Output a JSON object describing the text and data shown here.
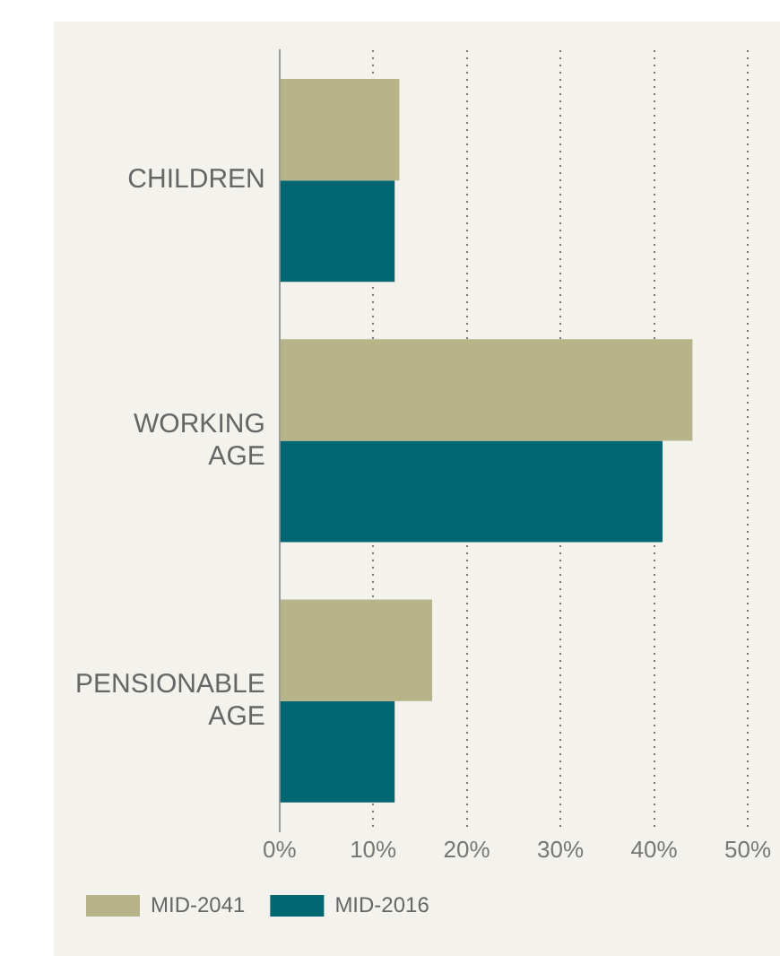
{
  "chart_data": {
    "type": "bar",
    "orientation": "horizontal",
    "categories": [
      "CHILDREN",
      "WORKING AGE",
      "PENSIONABLE AGE"
    ],
    "series": [
      {
        "name": "MID-2041",
        "color": "#b8b48a",
        "values": [
          12.8,
          44.1,
          16.3
        ]
      },
      {
        "name": "MID-2016",
        "color": "#006672",
        "values": [
          12.3,
          40.9,
          12.3
        ]
      }
    ],
    "xlim": [
      0,
      50
    ],
    "xticks": [
      {
        "value": 0,
        "label": "0%"
      },
      {
        "value": 10,
        "label": "10%"
      },
      {
        "value": 20,
        "label": "20%"
      },
      {
        "value": 30,
        "label": "30%"
      },
      {
        "value": 40,
        "label": "40%"
      },
      {
        "value": 50,
        "label": "50%"
      }
    ],
    "grid": "x",
    "legend": "bottom"
  }
}
